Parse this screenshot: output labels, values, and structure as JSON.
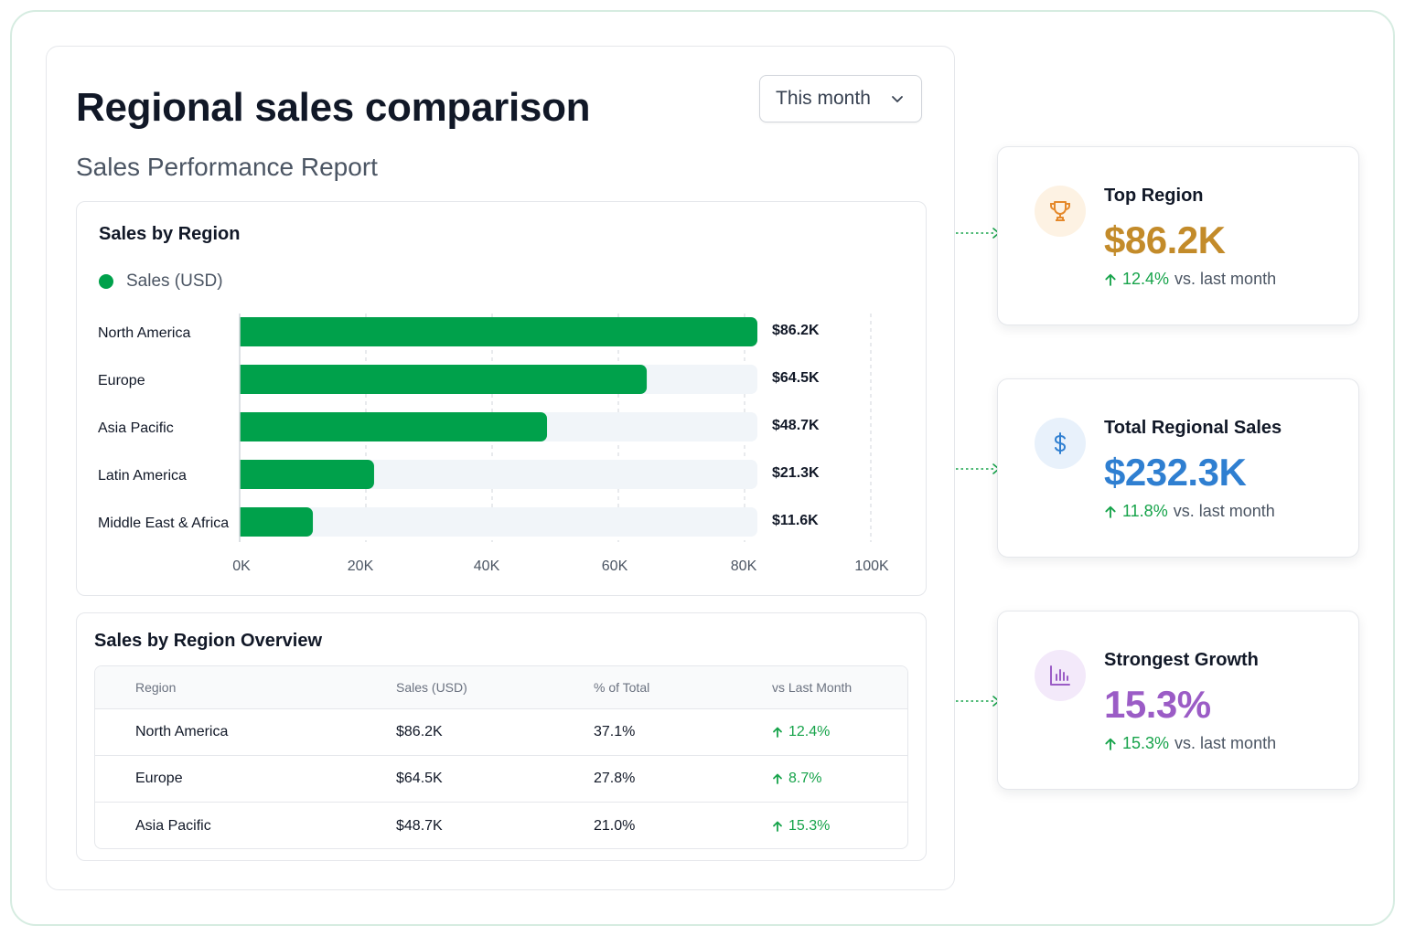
{
  "header": {
    "title": "Regional sales comparison",
    "subtitle": "Sales Performance Report",
    "period_select": "This month"
  },
  "chart_panel": {
    "title": "Sales by Region"
  },
  "chart_data": {
    "type": "bar",
    "orientation": "horizontal",
    "categories": [
      "North America",
      "Europe",
      "Asia Pacific",
      "Latin America",
      "Middle East & Africa"
    ],
    "series": [
      {
        "name": "Sales (USD)",
        "values": [
          86.2,
          64.5,
          48.7,
          21.3,
          11.6
        ],
        "color": "#00a14b"
      }
    ],
    "data_labels": [
      "$86.2K",
      "$64.5K",
      "$48.7K",
      "$21.3K",
      "$11.6K"
    ],
    "x_ticks": [
      "0K",
      "20K",
      "40K",
      "60K",
      "80K",
      "100K"
    ],
    "xlim": [
      0,
      100
    ],
    "grid": true,
    "legend": "top-left",
    "track_color": "#f1f5f9"
  },
  "table": {
    "title": "Sales by Region Overview",
    "columns": [
      "Region",
      "Sales (USD)",
      "% of Total",
      "vs Last Month"
    ],
    "rows": [
      [
        "North America",
        "$86.2K",
        "37.1%",
        "12.4%"
      ],
      [
        "Europe",
        "$64.5K",
        "27.8%",
        "8.7%"
      ],
      [
        "Asia Pacific",
        "$48.7K",
        "21.0%",
        "15.3%"
      ]
    ]
  },
  "kpis": [
    {
      "label": "Top Region",
      "value": "$86.2K",
      "change": "12.4%",
      "suffix": "vs. last month",
      "value_color": "#c38b2a",
      "icon": "trophy-icon",
      "icon_bg": "#fdf2e3",
      "icon_color": "#e5892b"
    },
    {
      "label": "Total Regional Sales",
      "value": "$232.3K",
      "change": "11.8%",
      "suffix": "vs. last month",
      "value_color": "#2f7fd1",
      "icon": "dollar-icon",
      "icon_bg": "#e8f1fb",
      "icon_color": "#2f7fd1"
    },
    {
      "label": "Strongest Growth",
      "value": "15.3%",
      "change": "15.3%",
      "suffix": "vs. last month",
      "value_color": "#9b5cc6",
      "icon": "bar-chart-icon",
      "icon_bg": "#f3e9fa",
      "icon_color": "#9b5cc6"
    }
  ],
  "colors": {
    "positive": "#16a34a",
    "border": "#e5e7eb",
    "frame": "#d6ece1"
  }
}
